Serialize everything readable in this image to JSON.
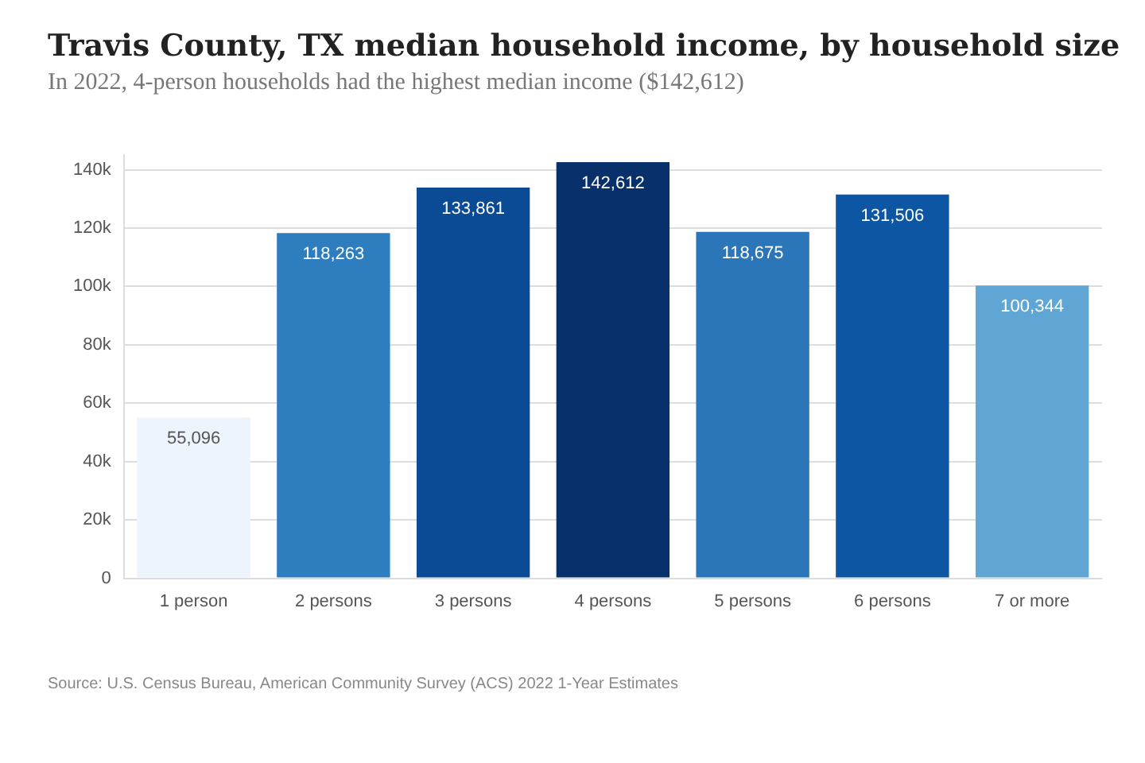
{
  "chart_data": {
    "type": "bar",
    "title": "Travis County, TX median household income, by household size",
    "subtitle": "In 2022, 4-person households had the highest median income ($142,612)",
    "categories": [
      "1 person",
      "2 persons",
      "3 persons",
      "4 persons",
      "5 persons",
      "6 persons",
      "7 or more"
    ],
    "values": [
      55096,
      118263,
      133861,
      142612,
      118675,
      131506,
      100344
    ],
    "colors": [
      "#eef4fb",
      "#2e7ebf",
      "#0b4a94",
      "#08306b",
      "#2b76b9",
      "#0d56a3",
      "#5fa6d4"
    ],
    "ylim": [
      0,
      145000
    ],
    "value_labels": [
      "55,096",
      "118,263",
      "133,861",
      "142,612",
      "118,675",
      "131,506",
      "100,344"
    ],
    "yticks": [
      {
        "value": 0,
        "label": "0"
      },
      {
        "value": 20000,
        "label": "20k"
      },
      {
        "value": 40000,
        "label": "40k"
      },
      {
        "value": 60000,
        "label": "60k"
      },
      {
        "value": 80000,
        "label": "80k"
      },
      {
        "value": 100000,
        "label": "100k"
      },
      {
        "value": 120000,
        "label": "120k"
      },
      {
        "value": 140000,
        "label": "140k"
      }
    ],
    "grid": "y",
    "annotations": [
      "Source: U.S. Census Bureau, American Community Survey (ACS) 2022 1-Year Estimates"
    ]
  }
}
